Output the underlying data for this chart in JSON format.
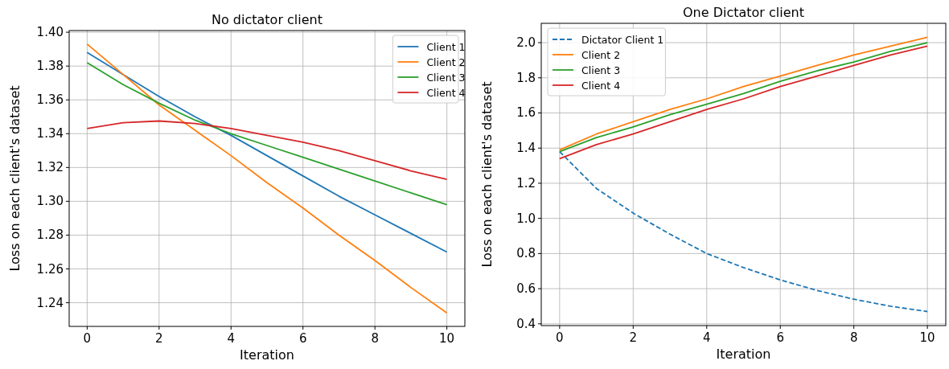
{
  "chart_data": [
    {
      "type": "line",
      "title": "No dictator client",
      "xlabel": "Iteration",
      "ylabel": "Loss on each client's dataset",
      "x": [
        0,
        1,
        2,
        3,
        4,
        5,
        6,
        7,
        8,
        9,
        10
      ],
      "series": [
        {
          "name": "Client 1",
          "color": "#1f77b4",
          "values": [
            1.388,
            1.375,
            1.362,
            1.35,
            1.339,
            1.327,
            1.315,
            1.303,
            1.292,
            1.281,
            1.27
          ]
        },
        {
          "name": "Client 2",
          "color": "#ff7f0e",
          "values": [
            1.393,
            1.375,
            1.357,
            1.342,
            1.327,
            1.311,
            1.296,
            1.28,
            1.265,
            1.249,
            1.234
          ]
        },
        {
          "name": "Client 3",
          "color": "#2ca02c",
          "values": [
            1.382,
            1.369,
            1.358,
            1.348,
            1.34,
            1.333,
            1.326,
            1.319,
            1.312,
            1.305,
            1.298
          ]
        },
        {
          "name": "Client 4",
          "color": "#d62728",
          "values": [
            1.343,
            1.3465,
            1.3475,
            1.346,
            1.343,
            1.339,
            1.335,
            1.33,
            1.324,
            1.318,
            1.313
          ]
        }
      ],
      "xlim": [
        -0.5,
        10.5
      ],
      "ylim": [
        1.226,
        1.401
      ],
      "xticks": [
        0,
        2,
        4,
        6,
        8,
        10
      ],
      "yticks": [
        {
          "value": 1.24,
          "label": "1.24"
        },
        {
          "value": 1.26,
          "label": "1.26"
        },
        {
          "value": 1.28,
          "label": "1.28"
        },
        {
          "value": 1.3,
          "label": "1.30"
        },
        {
          "value": 1.32,
          "label": "1.32"
        },
        {
          "value": 1.34,
          "label": "1.34"
        },
        {
          "value": 1.36,
          "label": "1.36"
        },
        {
          "value": 1.38,
          "label": "1.38"
        },
        {
          "value": 1.4,
          "label": "1.40"
        }
      ],
      "grid": true,
      "legend": "top right",
      "line_style": "solid"
    },
    {
      "type": "line",
      "title": "One Dictator client",
      "xlabel": "Iteration",
      "ylabel": "Loss on each client's dataset",
      "x": [
        0,
        1,
        2,
        3,
        4,
        5,
        6,
        7,
        8,
        9,
        10
      ],
      "series": [
        {
          "name": "Dictator Client 1",
          "color": "#1f77b4",
          "line_style": "dashed",
          "values": [
            1.38,
            1.17,
            1.03,
            0.91,
            0.8,
            0.72,
            0.65,
            0.59,
            0.54,
            0.5,
            0.47
          ]
        },
        {
          "name": "Client 2",
          "color": "#ff7f0e",
          "values": [
            1.39,
            1.48,
            1.55,
            1.62,
            1.68,
            1.75,
            1.81,
            1.87,
            1.93,
            1.98,
            2.03
          ]
        },
        {
          "name": "Client 3",
          "color": "#2ca02c",
          "values": [
            1.38,
            1.46,
            1.52,
            1.59,
            1.65,
            1.71,
            1.78,
            1.84,
            1.89,
            1.95,
            2.0
          ]
        },
        {
          "name": "Client 4",
          "color": "#d62728",
          "values": [
            1.34,
            1.42,
            1.48,
            1.55,
            1.62,
            1.68,
            1.75,
            1.81,
            1.87,
            1.93,
            1.98
          ]
        }
      ],
      "xlim": [
        -0.5,
        10.5
      ],
      "ylim": [
        0.39,
        2.11
      ],
      "xticks": [
        0,
        2,
        4,
        6,
        8,
        10
      ],
      "yticks": [
        0.4,
        0.6,
        0.8,
        {
          "value": 1,
          "label": "1.0"
        },
        1.2,
        1.4,
        1.6,
        1.8,
        {
          "value": 2,
          "label": "2.0"
        }
      ],
      "grid": true,
      "legend": "top left",
      "line_style": "solid"
    }
  ]
}
